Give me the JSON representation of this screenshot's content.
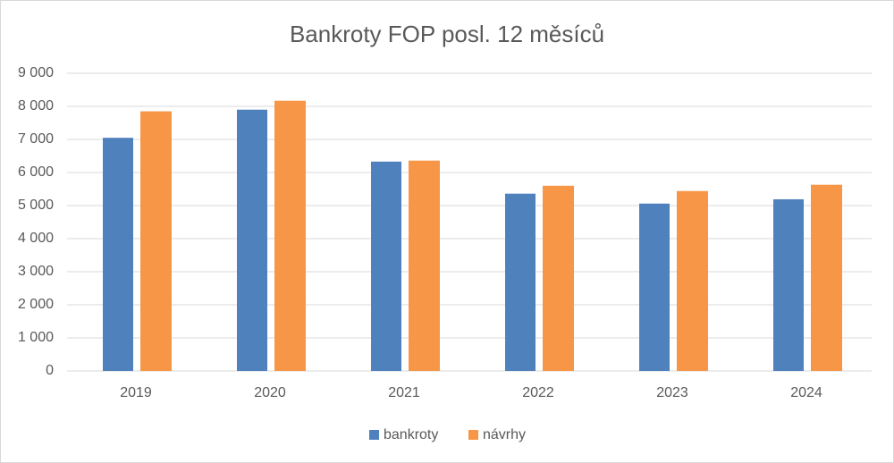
{
  "chart_data": {
    "type": "bar",
    "title": "Bankroty FOP posl. 12 měsíců",
    "categories": [
      "2019",
      "2020",
      "2021",
      "2022",
      "2023",
      "2024"
    ],
    "series": [
      {
        "name": "bankroty",
        "color": "#4f81bd",
        "values": [
          7050,
          7900,
          6330,
          5360,
          5060,
          5190
        ]
      },
      {
        "name": "návrhy",
        "color": "#f79646",
        "values": [
          7850,
          8170,
          6360,
          5600,
          5440,
          5630
        ]
      }
    ],
    "ylim": [
      0,
      9000
    ],
    "yticks": [
      0,
      {
        "value": 1000,
        "label": "1 000"
      },
      {
        "value": 2000,
        "label": "2 000"
      },
      {
        "value": 3000,
        "label": "3 000"
      },
      {
        "value": 4000,
        "label": "4 000"
      },
      {
        "value": 5000,
        "label": "5 000"
      },
      {
        "value": 6000,
        "label": "6 000"
      },
      {
        "value": 7000,
        "label": "7 000"
      },
      {
        "value": 8000,
        "label": "8 000"
      },
      {
        "value": 9000,
        "label": "9 000"
      }
    ],
    "grid": true,
    "legend": "bottom"
  }
}
